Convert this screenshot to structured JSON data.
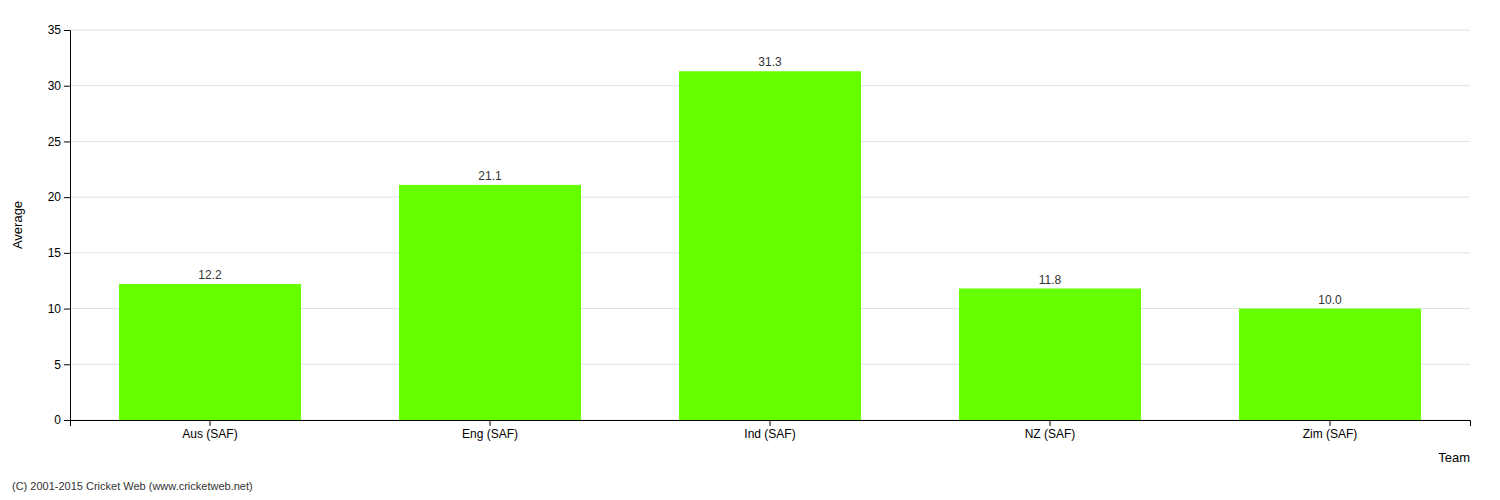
{
  "chart_data": {
    "type": "bar",
    "categories": [
      "Aus (SAF)",
      "Eng (SAF)",
      "Ind (SAF)",
      "NZ (SAF)",
      "Zim (SAF)"
    ],
    "values": [
      12.2,
      21.1,
      31.3,
      11.8,
      10.0
    ],
    "value_labels": [
      "12.2",
      "21.1",
      "31.3",
      "11.8",
      "10.0"
    ],
    "data_labels": true,
    "color": "#66ff00",
    "xlabel": "Team",
    "ylabel": "Average",
    "ylim": [
      0,
      35
    ],
    "yticks": [
      0,
      5,
      10,
      15,
      20,
      25,
      30,
      35
    ],
    "grid": true,
    "annotations": [
      "(C) 2001-2015 Cricket Web (www.cricketweb.net)"
    ]
  }
}
